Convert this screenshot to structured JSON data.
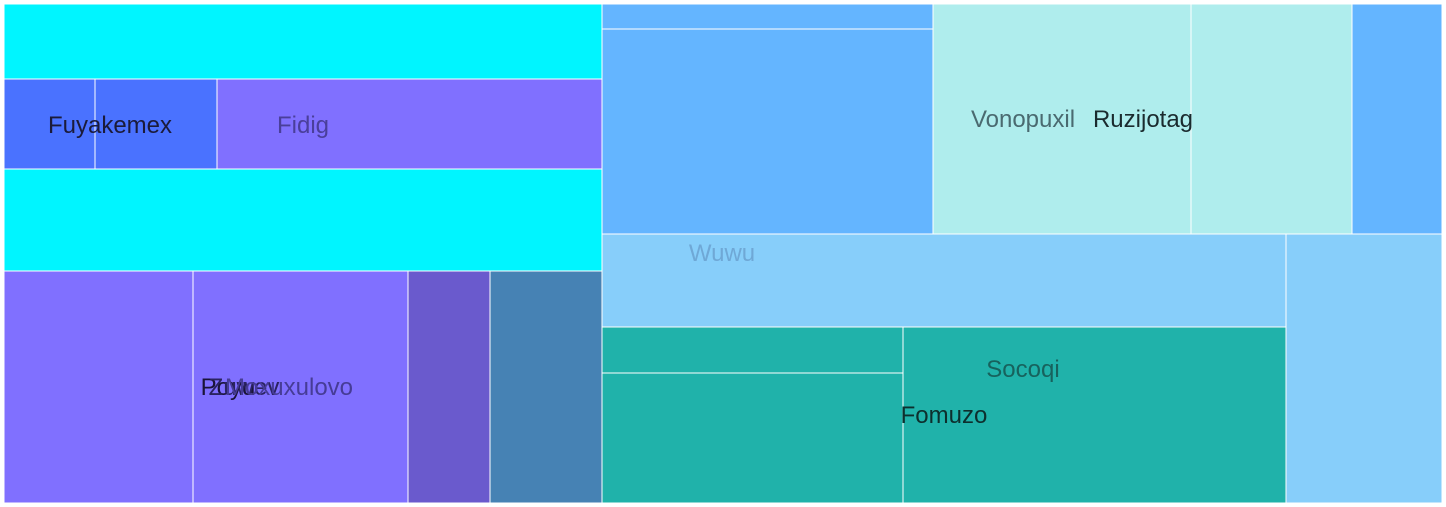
{
  "chart_data": {
    "type": "treemap",
    "title": "",
    "cells": [
      {
        "label": "",
        "color": "#00f5ff",
        "value": 45000
      },
      {
        "label": "Fuyakemex",
        "color": "#4a72ff",
        "value": 8200
      },
      {
        "label": "",
        "color": "#4a72ff",
        "value": 11000
      },
      {
        "label": "Fidig",
        "color": "#8070ff",
        "value": 34500
      },
      {
        "label": "",
        "color": "#00f5ff",
        "value": 61000
      },
      {
        "label": "Poyu",
        "color": "#8070ff",
        "value": 44000
      },
      {
        "label": "Zuwev",
        "color": "#8070ff",
        "value": 49700
      },
      {
        "label": "Moxuxulovo",
        "color": "#6a5acd",
        "value": 19000
      },
      {
        "label": "",
        "color": "#4682b4",
        "value": 25800
      },
      {
        "label": "",
        "color": "#64b5ff",
        "value": 8300
      },
      {
        "label": "",
        "color": "#64b5ff",
        "value": 68000
      },
      {
        "label": "Vonopuxil",
        "color": "#afeded",
        "value": 59500
      },
      {
        "label": "Ruzijotag",
        "color": "#afeded",
        "value": 37900
      },
      {
        "label": "",
        "color": "#64b5ff",
        "value": 21400
      },
      {
        "label": "Wuwu",
        "color": "#87cefa",
        "value": 62700
      },
      {
        "label": "",
        "color": "#87cefa",
        "value": 42300
      },
      {
        "label": "",
        "color": "#20b2aa",
        "value": 13900
      },
      {
        "label": "Fomuzo",
        "color": "#20b2aa",
        "value": 39000
      },
      {
        "label": "Socoqi",
        "color": "#20b2aa",
        "value": 70200
      }
    ]
  }
}
